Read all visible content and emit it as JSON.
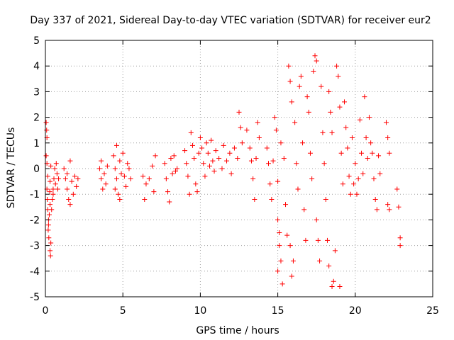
{
  "chart_data": {
    "type": "scatter",
    "title": "Day 337 of 2021, Sidereal Day-to-day VTEC variation (SDTVAR) for receiver eur2",
    "xlabel": "GPS time / hours",
    "ylabel": "SDTVAR / TECUs",
    "xlim": [
      0,
      25
    ],
    "ylim": [
      -5,
      5
    ],
    "xticks": [
      0,
      5,
      10,
      15,
      20,
      25
    ],
    "xtick_labels": [
      "0",
      "5",
      "10",
      "15",
      "20",
      "25"
    ],
    "yticks": [
      -5,
      -4,
      -3,
      -2,
      -1,
      0,
      1,
      2,
      3,
      4,
      5
    ],
    "ytick_labels": [
      "-5",
      "-4",
      "-3",
      "-2",
      "-1",
      "0",
      "1",
      "2",
      "3",
      "4",
      "5"
    ],
    "grid": true,
    "marker": "+",
    "series": [
      {
        "name": "SDTVAR",
        "color": "#ff0000",
        "points": [
          [
            0.05,
            1.8
          ],
          [
            0.08,
            1.5
          ],
          [
            0.1,
            1.2
          ],
          [
            0.05,
            0.5
          ],
          [
            0.1,
            0.2
          ],
          [
            0.15,
            -0.3
          ],
          [
            0.1,
            -0.8
          ],
          [
            0.12,
            -1.2
          ],
          [
            0.15,
            -1.6
          ],
          [
            0.2,
            -2.0
          ],
          [
            0.18,
            -2.4
          ],
          [
            0.22,
            -2.7
          ],
          [
            0.2,
            -2.2
          ],
          [
            0.25,
            -1.8
          ],
          [
            0.3,
            -1.4
          ],
          [
            0.28,
            -0.9
          ],
          [
            0.3,
            -0.5
          ],
          [
            0.35,
            0.1
          ],
          [
            0.35,
            -2.9
          ],
          [
            0.3,
            -3.2
          ],
          [
            0.33,
            -3.4
          ],
          [
            0.4,
            -1.6
          ],
          [
            0.45,
            -1.2
          ],
          [
            0.5,
            -0.8
          ],
          [
            0.55,
            -0.4
          ],
          [
            0.6,
            0.0
          ],
          [
            0.5,
            -1.0
          ],
          [
            0.65,
            -0.6
          ],
          [
            0.7,
            0.2
          ],
          [
            0.75,
            -0.2
          ],
          [
            0.8,
            -0.8
          ],
          [
            0.85,
            -0.4
          ],
          [
            1.2,
            0.0
          ],
          [
            1.3,
            -0.4
          ],
          [
            1.4,
            -0.8
          ],
          [
            1.5,
            -1.2
          ],
          [
            1.4,
            -0.2
          ],
          [
            1.6,
            0.3
          ],
          [
            1.7,
            -0.5
          ],
          [
            1.6,
            -1.4
          ],
          [
            1.8,
            -1.0
          ],
          [
            1.9,
            -0.3
          ],
          [
            2.0,
            -0.7
          ],
          [
            2.1,
            -0.4
          ],
          [
            3.5,
            0.0
          ],
          [
            3.6,
            -0.4
          ],
          [
            3.7,
            -0.8
          ],
          [
            3.6,
            0.3
          ],
          [
            3.8,
            -0.2
          ],
          [
            3.9,
            -0.6
          ],
          [
            4.0,
            0.1
          ],
          [
            4.4,
            0.5
          ],
          [
            4.5,
            0.0
          ],
          [
            4.6,
            -0.4
          ],
          [
            4.5,
            -0.8
          ],
          [
            4.7,
            -1.0
          ],
          [
            4.8,
            0.3
          ],
          [
            4.9,
            -0.2
          ],
          [
            5.0,
            0.6
          ],
          [
            5.1,
            -0.3
          ],
          [
            5.2,
            -0.7
          ],
          [
            5.3,
            0.2
          ],
          [
            5.4,
            0.0
          ],
          [
            5.5,
            -0.4
          ],
          [
            4.6,
            0.9
          ],
          [
            4.8,
            -1.2
          ],
          [
            6.3,
            -0.3
          ],
          [
            6.5,
            -0.6
          ],
          [
            6.4,
            -1.2
          ],
          [
            6.7,
            -0.4
          ],
          [
            6.9,
            0.1
          ],
          [
            7.0,
            -0.9
          ],
          [
            7.1,
            0.5
          ],
          [
            7.7,
            0.2
          ],
          [
            7.8,
            -0.4
          ],
          [
            7.9,
            -0.9
          ],
          [
            8.0,
            -1.3
          ],
          [
            8.1,
            0.4
          ],
          [
            8.2,
            -0.2
          ],
          [
            8.3,
            0.5
          ],
          [
            8.4,
            -0.1
          ],
          [
            8.5,
            0.0
          ],
          [
            9.0,
            0.7
          ],
          [
            9.1,
            0.2
          ],
          [
            9.2,
            -0.3
          ],
          [
            9.3,
            -1.0
          ],
          [
            9.4,
            1.4
          ],
          [
            9.5,
            0.9
          ],
          [
            9.6,
            0.4
          ],
          [
            9.7,
            -0.6
          ],
          [
            9.8,
            -0.9
          ],
          [
            9.9,
            0.6
          ],
          [
            10.0,
            1.2
          ],
          [
            10.1,
            0.8
          ],
          [
            10.2,
            0.2
          ],
          [
            10.3,
            -0.3
          ],
          [
            10.4,
            1.0
          ],
          [
            10.5,
            0.6
          ],
          [
            10.6,
            0.1
          ],
          [
            10.7,
            1.1
          ],
          [
            10.8,
            0.3
          ],
          [
            10.9,
            -0.1
          ],
          [
            11.0,
            0.7
          ],
          [
            11.2,
            0.4
          ],
          [
            11.4,
            0.0
          ],
          [
            11.5,
            0.9
          ],
          [
            11.7,
            0.3
          ],
          [
            11.9,
            0.6
          ],
          [
            12.0,
            -0.2
          ],
          [
            12.2,
            0.8
          ],
          [
            12.4,
            0.4
          ],
          [
            12.5,
            2.2
          ],
          [
            12.6,
            1.6
          ],
          [
            12.7,
            1.0
          ],
          [
            13.0,
            1.5
          ],
          [
            13.2,
            0.8
          ],
          [
            13.3,
            0.3
          ],
          [
            13.4,
            -0.4
          ],
          [
            13.5,
            -1.2
          ],
          [
            13.6,
            0.4
          ],
          [
            13.7,
            1.8
          ],
          [
            13.8,
            1.2
          ],
          [
            14.3,
            0.8
          ],
          [
            14.4,
            0.2
          ],
          [
            14.5,
            -0.6
          ],
          [
            14.6,
            -1.2
          ],
          [
            14.7,
            0.3
          ],
          [
            14.8,
            2.0
          ],
          [
            14.9,
            1.5
          ],
          [
            15.0,
            -0.5
          ],
          [
            15.0,
            -2.0
          ],
          [
            15.1,
            -3.0
          ],
          [
            15.0,
            -4.0
          ],
          [
            15.2,
            -3.6
          ],
          [
            15.1,
            -2.5
          ],
          [
            15.3,
            -4.5
          ],
          [
            15.2,
            1.0
          ],
          [
            15.4,
            0.4
          ],
          [
            15.5,
            -1.4
          ],
          [
            15.6,
            -2.6
          ],
          [
            15.7,
            4.0
          ],
          [
            15.8,
            3.4
          ],
          [
            15.9,
            2.6
          ],
          [
            15.8,
            -3.0
          ],
          [
            15.9,
            -4.2
          ],
          [
            16.0,
            -3.6
          ],
          [
            16.1,
            1.8
          ],
          [
            16.2,
            0.2
          ],
          [
            16.3,
            -0.8
          ],
          [
            16.4,
            3.2
          ],
          [
            16.5,
            3.6
          ],
          [
            16.6,
            1.0
          ],
          [
            16.7,
            -1.6
          ],
          [
            16.8,
            -2.8
          ],
          [
            16.9,
            2.8
          ],
          [
            17.0,
            2.2
          ],
          [
            17.1,
            0.6
          ],
          [
            17.2,
            -0.4
          ],
          [
            17.3,
            3.8
          ],
          [
            17.4,
            4.4
          ],
          [
            17.5,
            4.2
          ],
          [
            17.5,
            -2.0
          ],
          [
            17.6,
            -2.8
          ],
          [
            17.7,
            -3.6
          ],
          [
            17.8,
            3.2
          ],
          [
            17.9,
            1.4
          ],
          [
            18.0,
            0.2
          ],
          [
            18.1,
            -1.2
          ],
          [
            18.2,
            -2.8
          ],
          [
            18.3,
            -3.8
          ],
          [
            18.3,
            3.0
          ],
          [
            18.4,
            2.2
          ],
          [
            18.5,
            1.4
          ],
          [
            18.5,
            -4.6
          ],
          [
            18.6,
            -4.4
          ],
          [
            18.7,
            -3.2
          ],
          [
            18.8,
            4.0
          ],
          [
            18.9,
            3.6
          ],
          [
            19.0,
            2.4
          ],
          [
            19.0,
            -4.6
          ],
          [
            19.1,
            0.6
          ],
          [
            19.2,
            -0.6
          ],
          [
            19.3,
            2.6
          ],
          [
            19.4,
            1.6
          ],
          [
            19.5,
            0.8
          ],
          [
            19.6,
            -0.3
          ],
          [
            19.7,
            -1.0
          ],
          [
            19.8,
            1.2
          ],
          [
            19.9,
            -0.6
          ],
          [
            20.0,
            0.2
          ],
          [
            20.1,
            -1.0
          ],
          [
            20.2,
            -0.4
          ],
          [
            20.3,
            1.9
          ],
          [
            20.4,
            0.6
          ],
          [
            20.5,
            -0.2
          ],
          [
            20.6,
            2.8
          ],
          [
            20.7,
            1.2
          ],
          [
            20.8,
            0.4
          ],
          [
            20.9,
            2.0
          ],
          [
            21.0,
            1.0
          ],
          [
            21.1,
            0.6
          ],
          [
            21.2,
            -0.4
          ],
          [
            21.3,
            -1.2
          ],
          [
            21.4,
            -1.6
          ],
          [
            21.5,
            0.5
          ],
          [
            21.6,
            -0.2
          ],
          [
            22.0,
            1.8
          ],
          [
            22.1,
            1.2
          ],
          [
            22.2,
            0.6
          ],
          [
            22.1,
            -1.4
          ],
          [
            22.2,
            -1.6
          ],
          [
            22.7,
            -0.8
          ],
          [
            22.8,
            -1.5
          ],
          [
            22.9,
            -2.7
          ],
          [
            22.9,
            -3.0
          ]
        ]
      }
    ]
  }
}
